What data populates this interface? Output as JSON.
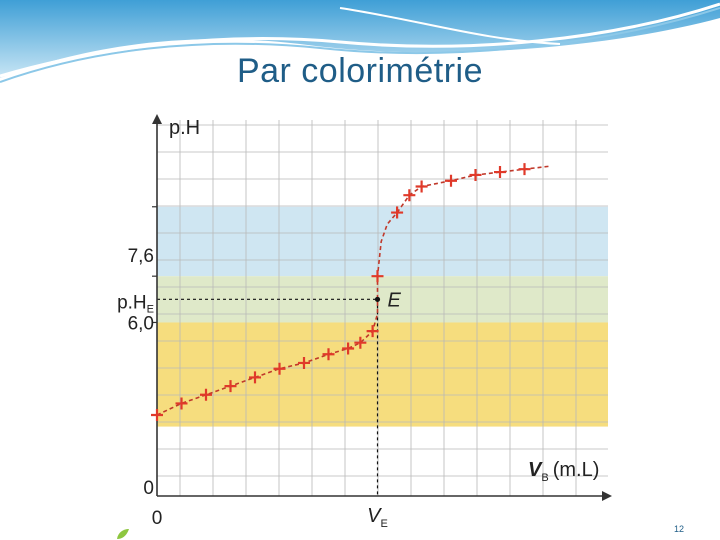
{
  "slide": {
    "title": "Par colorimétrie",
    "page_number": "12"
  },
  "colors": {
    "title": "#1f5d87",
    "curve": "#c0392b",
    "marker": "#e03a2a",
    "band_blue": "#cfe6f2",
    "band_green": "#dfe9c9",
    "band_yellow": "#f6dd7e",
    "grid": "#b8b8b8",
    "axis": "#333333"
  },
  "chart_data": {
    "type": "scatter",
    "xlabel_symbol": "V",
    "xlabel_sub": "B",
    "xlabel_unit": "(m.L)",
    "ylabel": "p.H",
    "x_tick_labels": {
      "origin": "0",
      "equivalence_symbol": "V",
      "equivalence_sub": "E"
    },
    "y_tick_labels": {
      "origin": "0",
      "upper": "7,6",
      "lower": "6,0",
      "equivalence_symbol": "p.H",
      "equivalence_sub": "E"
    },
    "xlim": [
      0,
      18
    ],
    "ylim": [
      0,
      13
    ],
    "equivalence": {
      "label": "E",
      "x": 9,
      "y": 6.8
    },
    "bands": [
      {
        "name": "blue",
        "from": 7.6,
        "to": 10.0
      },
      {
        "name": "green",
        "from": 6.0,
        "to": 7.6
      },
      {
        "name": "yellow",
        "from": 2.4,
        "to": 6.0
      }
    ],
    "points": [
      [
        0,
        2.8
      ],
      [
        1,
        3.2
      ],
      [
        2,
        3.5
      ],
      [
        3,
        3.8
      ],
      [
        4,
        4.1
      ],
      [
        5,
        4.4
      ],
      [
        6,
        4.6
      ],
      [
        7,
        4.9
      ],
      [
        7.8,
        5.1
      ],
      [
        8.3,
        5.3
      ],
      [
        8.8,
        5.7
      ],
      [
        9.0,
        7.6
      ],
      [
        9.8,
        9.8
      ],
      [
        10.3,
        10.4
      ],
      [
        10.8,
        10.7
      ],
      [
        12,
        10.9
      ],
      [
        13,
        11.1
      ],
      [
        14,
        11.2
      ],
      [
        15,
        11.3
      ]
    ],
    "curve": [
      [
        0,
        2.8
      ],
      [
        1,
        3.2
      ],
      [
        2,
        3.5
      ],
      [
        3,
        3.8
      ],
      [
        4,
        4.1
      ],
      [
        5,
        4.4
      ],
      [
        6,
        4.6
      ],
      [
        7,
        4.9
      ],
      [
        7.8,
        5.1
      ],
      [
        8.3,
        5.3
      ],
      [
        8.8,
        5.7
      ],
      [
        9.0,
        6.3
      ],
      [
        9.0,
        7.6
      ],
      [
        9.15,
        8.8
      ],
      [
        9.4,
        9.4
      ],
      [
        9.8,
        9.8
      ],
      [
        10.3,
        10.4
      ],
      [
        10.8,
        10.7
      ],
      [
        12,
        10.9
      ],
      [
        13,
        11.1
      ],
      [
        14,
        11.2
      ],
      [
        15,
        11.3
      ],
      [
        16,
        11.4
      ]
    ],
    "grid": true
  }
}
